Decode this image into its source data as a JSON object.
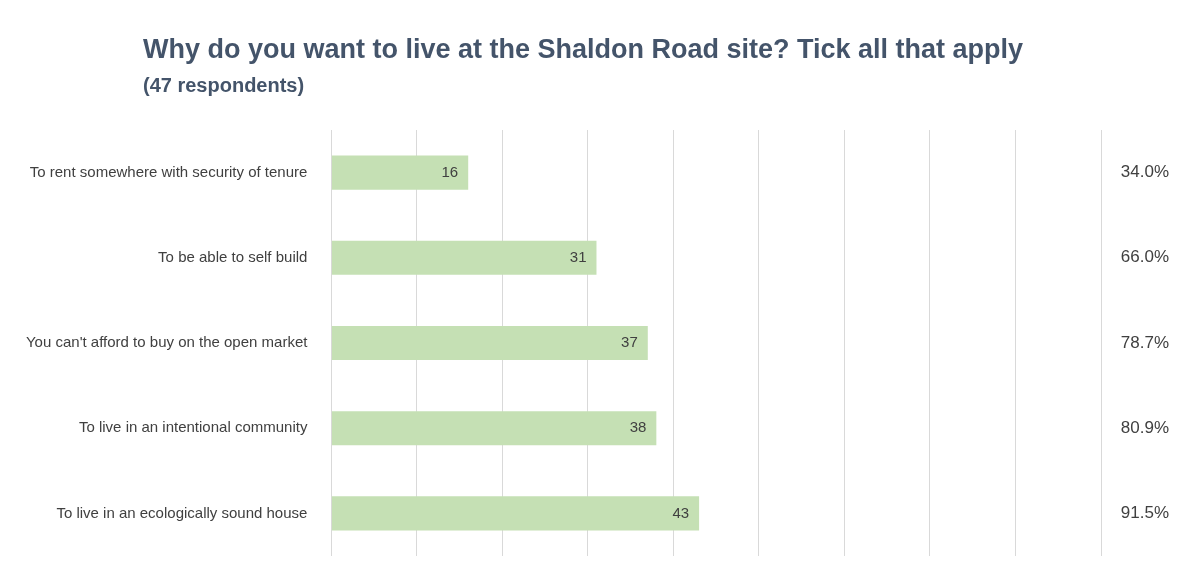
{
  "chart_data": {
    "type": "bar",
    "orientation": "horizontal",
    "title": "Why do you want to live at the Shaldon Road site? Tick all that apply",
    "subtitle": "(47 respondents)",
    "categories": [
      "To rent somewhere with security of tenure",
      "To be able to self build",
      "You can't afford to buy on the open market",
      "To live in an intentional community",
      "To live in an ecologically sound house"
    ],
    "values": [
      16,
      31,
      37,
      38,
      43
    ],
    "color": "#c5e0b4",
    "data_labels": true,
    "xlim": [
      0,
      90
    ],
    "xticks": [
      {
        "value": 0,
        "label": null
      },
      {
        "value": 10,
        "label": null
      },
      {
        "value": 20,
        "label": null
      },
      {
        "value": 30,
        "label": null
      },
      {
        "value": 40,
        "label": null
      },
      {
        "value": 50,
        "label": null
      },
      {
        "value": 60,
        "label": null
      },
      {
        "value": 70,
        "label": null
      },
      {
        "value": 80,
        "label": null
      },
      {
        "value": 90,
        "label": null
      }
    ],
    "grid": "x",
    "tick_labels": "y",
    "legend": false,
    "annotations": [
      "34.0%",
      "66.0%",
      "78.7%",
      "80.9%",
      "91.5%"
    ]
  }
}
